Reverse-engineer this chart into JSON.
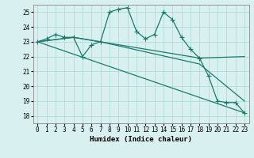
{
  "xlabel": "Humidex (Indice chaleur)",
  "background_color": "#d8f0f0",
  "grid_color": "#a8d8d0",
  "line_color": "#1a7a6a",
  "xlim": [
    -0.5,
    23.5
  ],
  "ylim": [
    17.5,
    25.5
  ],
  "yticks": [
    18,
    19,
    20,
    21,
    22,
    23,
    24,
    25
  ],
  "xticks": [
    0,
    1,
    2,
    3,
    4,
    5,
    6,
    7,
    8,
    9,
    10,
    11,
    12,
    13,
    14,
    15,
    16,
    17,
    18,
    19,
    20,
    21,
    22,
    23
  ],
  "series": [
    {
      "x": [
        0,
        1,
        2,
        3,
        4,
        5,
        6,
        7,
        8,
        9,
        10,
        11,
        12,
        13,
        14,
        15,
        16,
        17,
        18,
        19,
        20,
        21,
        22,
        23
      ],
      "y": [
        23,
        23.2,
        23.5,
        23.3,
        23.3,
        22.0,
        22.8,
        23.0,
        25.0,
        25.2,
        25.3,
        23.7,
        23.2,
        23.5,
        25.0,
        24.5,
        23.3,
        22.5,
        21.9,
        20.7,
        19.0,
        18.9,
        18.9,
        18.2
      ],
      "marker": "+",
      "markersize": 4,
      "linewidth": 0.9
    },
    {
      "x": [
        0,
        4,
        7,
        18,
        23
      ],
      "y": [
        23,
        23.3,
        23.0,
        21.9,
        22.0
      ],
      "marker": null,
      "linewidth": 0.9
    },
    {
      "x": [
        0,
        4,
        7,
        18,
        23
      ],
      "y": [
        23,
        23.3,
        23.0,
        21.5,
        19.0
      ],
      "marker": null,
      "linewidth": 0.9
    },
    {
      "x": [
        0,
        23
      ],
      "y": [
        23,
        18.2
      ],
      "marker": null,
      "linewidth": 0.9
    }
  ]
}
